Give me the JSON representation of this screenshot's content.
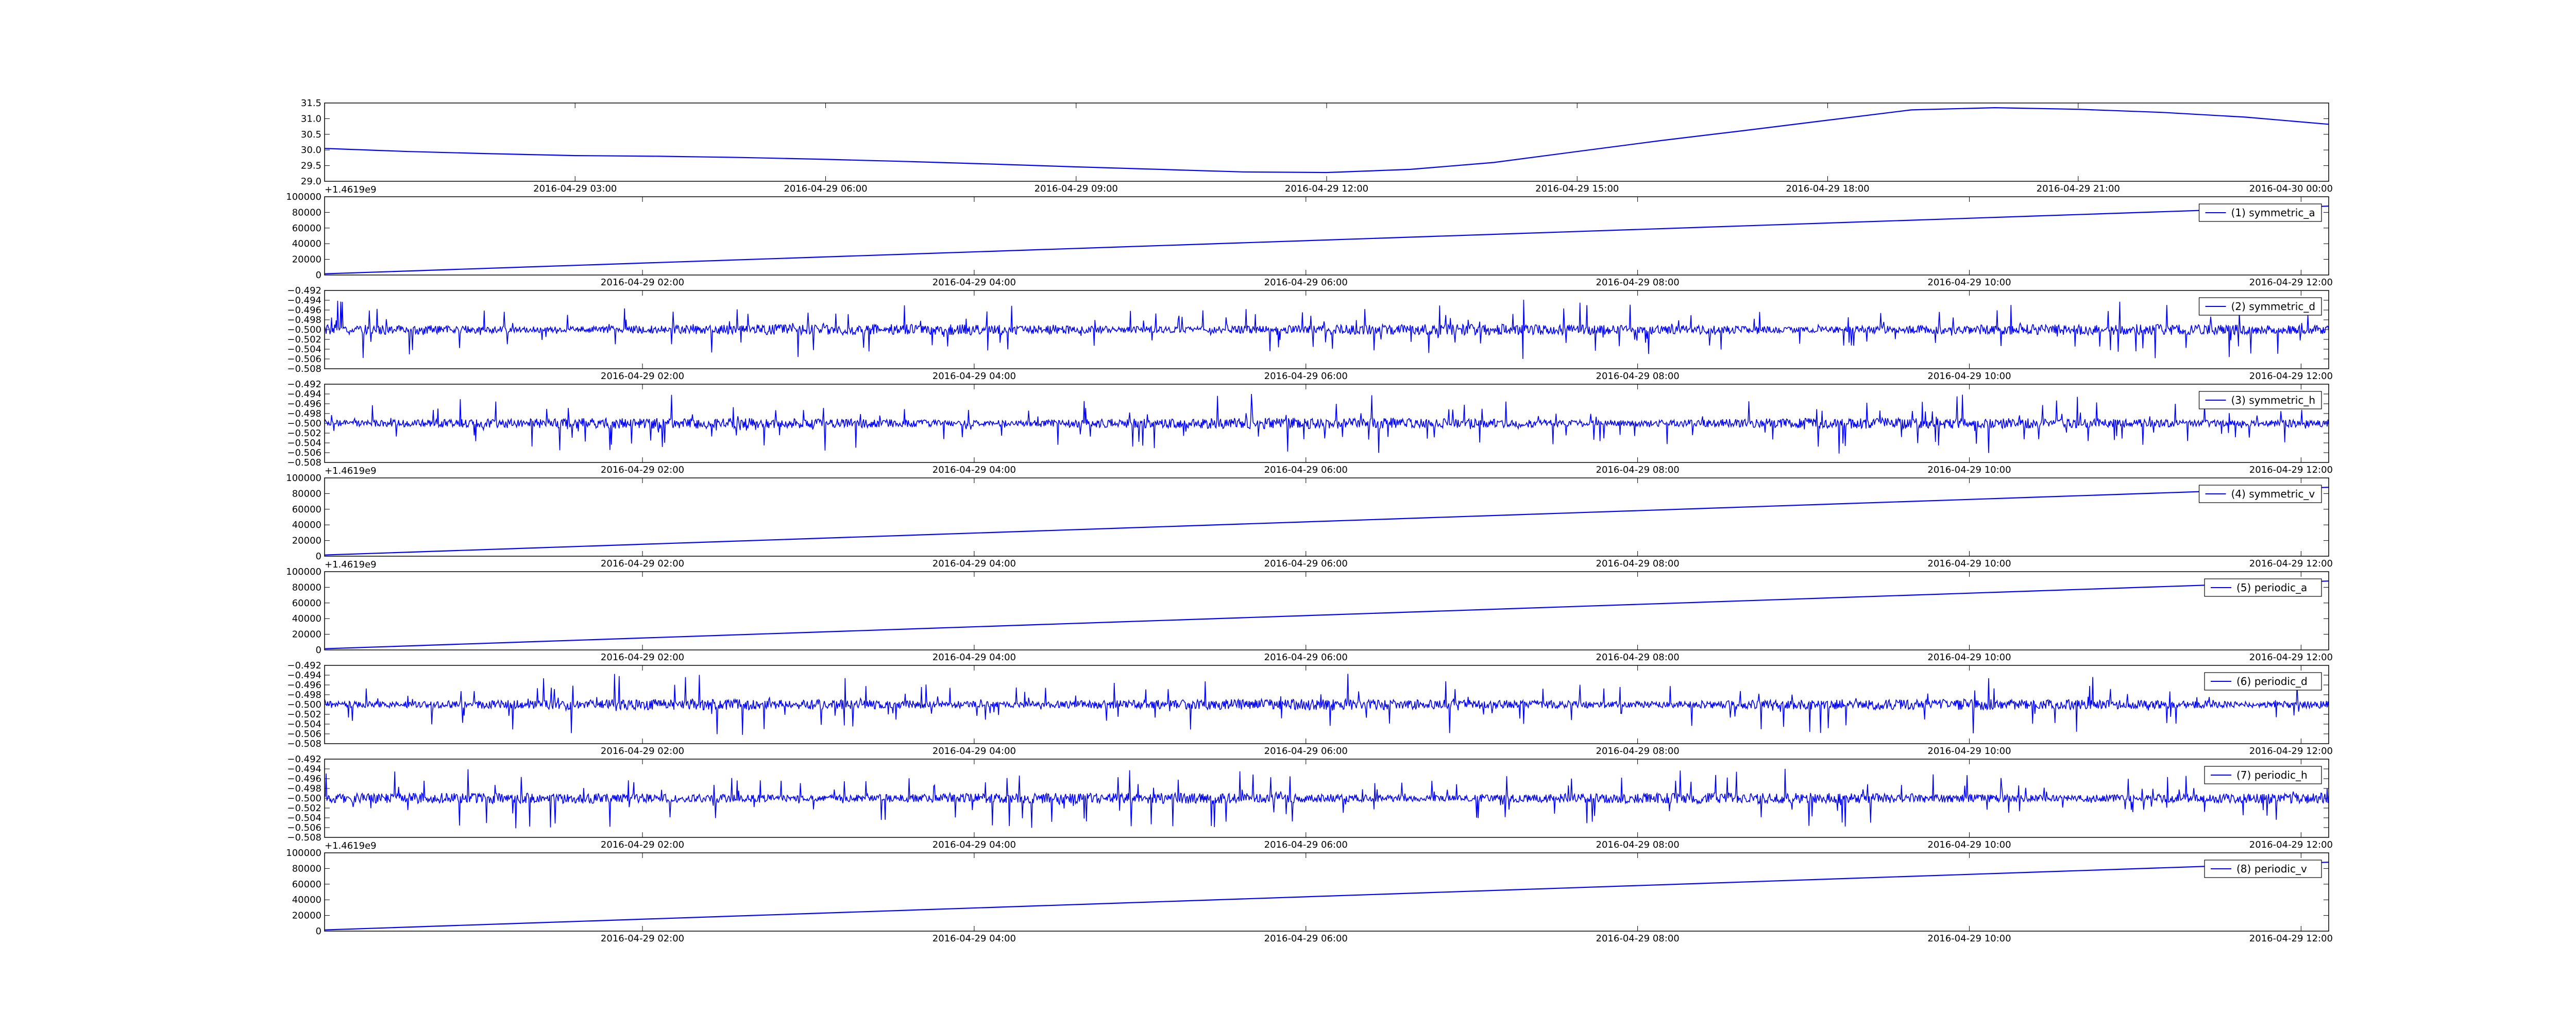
{
  "figure": {
    "background": "#ffffff",
    "line_color": "#0000ff",
    "axis_color": "#000000"
  },
  "chart_data": [
    {
      "id": "top",
      "type": "line",
      "x_type": "date",
      "xlim": [
        "2016-04-29 00:00",
        "2016-04-30 00:00"
      ],
      "ylim": [
        29.0,
        31.5
      ],
      "x_tick_labels": [
        "2016-04-29 03:00",
        "2016-04-29 06:00",
        "2016-04-29 09:00",
        "2016-04-29 12:00",
        "2016-04-29 15:00",
        "2016-04-29 18:00",
        "2016-04-29 21:00",
        "2016-04-30 00:00"
      ],
      "y_tick_labels": [
        "29.0",
        "29.5",
        "30.0",
        "30.5",
        "31.0",
        "31.5"
      ],
      "offset_label": "+1.4619e9",
      "legend": null,
      "series": [
        {
          "x": [
            "2016-04-29 00:00",
            "2016-04-29 01:00",
            "2016-04-29 02:00",
            "2016-04-29 03:00",
            "2016-04-29 04:00",
            "2016-04-29 05:00",
            "2016-04-29 06:00",
            "2016-04-29 07:00",
            "2016-04-29 08:00",
            "2016-04-29 09:00",
            "2016-04-29 10:00",
            "2016-04-29 11:00",
            "2016-04-29 12:00",
            "2016-04-29 13:00",
            "2016-04-29 14:00",
            "2016-04-29 15:00",
            "2016-04-29 16:00",
            "2016-04-29 17:00",
            "2016-04-29 18:00",
            "2016-04-29 19:00",
            "2016-04-29 20:00",
            "2016-04-29 21:00",
            "2016-04-29 22:00",
            "2016-04-29 23:00",
            "2016-04-30 00:00"
          ],
          "values": [
            30.05,
            29.95,
            29.88,
            29.82,
            29.8,
            29.76,
            29.7,
            29.63,
            29.55,
            29.46,
            29.38,
            29.3,
            29.28,
            29.38,
            29.6,
            29.95,
            30.3,
            30.62,
            30.95,
            31.28,
            31.35,
            31.3,
            31.2,
            31.05,
            30.82
          ]
        }
      ]
    },
    {
      "id": "p1",
      "type": "line",
      "x_type": "date",
      "xlim": [
        "2016-04-29 00:05",
        "2016-04-29 12:10"
      ],
      "ylim": [
        0,
        100000
      ],
      "x_tick_labels": [
        "2016-04-29 02:00",
        "2016-04-29 04:00",
        "2016-04-29 06:00",
        "2016-04-29 08:00",
        "2016-04-29 10:00",
        "2016-04-29 12:00"
      ],
      "y_tick_labels": [
        "0",
        "20000",
        "40000",
        "60000",
        "80000",
        "100000"
      ],
      "offset_label": "",
      "legend": "(1) symmetric_a",
      "series": [
        {
          "x": [
            "2016-04-29 00:05",
            "2016-04-29 12:10"
          ],
          "values": [
            1500,
            88000
          ]
        }
      ]
    },
    {
      "id": "p2",
      "type": "line",
      "x_type": "date",
      "noise": true,
      "xlim": [
        "2016-04-29 00:05",
        "2016-04-29 12:10"
      ],
      "ylim": [
        -0.508,
        -0.492
      ],
      "x_tick_labels": [
        "2016-04-29 02:00",
        "2016-04-29 04:00",
        "2016-04-29 06:00",
        "2016-04-29 08:00",
        "2016-04-29 10:00",
        "2016-04-29 12:00"
      ],
      "y_tick_labels": [
        "−0.508",
        "−0.506",
        "−0.504",
        "−0.502",
        "−0.500",
        "−0.498",
        "−0.496",
        "−0.494",
        "−0.492"
      ],
      "offset_label": "",
      "legend": "(2) symmetric_d",
      "series": [
        {
          "x": [
            "2016-04-29 00:05",
            "2016-04-29 12:10"
          ],
          "values": [
            -0.5,
            -0.5
          ],
          "range": [
            -0.5065,
            -0.4935
          ]
        }
      ]
    },
    {
      "id": "p3",
      "type": "line",
      "x_type": "date",
      "noise": true,
      "xlim": [
        "2016-04-29 00:05",
        "2016-04-29 12:10"
      ],
      "ylim": [
        -0.508,
        -0.492
      ],
      "x_tick_labels": [
        "2016-04-29 02:00",
        "2016-04-29 04:00",
        "2016-04-29 06:00",
        "2016-04-29 08:00",
        "2016-04-29 10:00",
        "2016-04-29 12:00"
      ],
      "y_tick_labels": [
        "−0.508",
        "−0.506",
        "−0.504",
        "−0.502",
        "−0.500",
        "−0.498",
        "−0.496",
        "−0.494",
        "−0.492"
      ],
      "offset_label": "+1.4619e9",
      "legend": "(3) symmetric_h",
      "series": [
        {
          "x": [
            "2016-04-29 00:05",
            "2016-04-29 12:10"
          ],
          "values": [
            -0.5,
            -0.5
          ],
          "range": [
            -0.5075,
            -0.4935
          ]
        }
      ]
    },
    {
      "id": "p4",
      "type": "line",
      "x_type": "date",
      "xlim": [
        "2016-04-29 00:05",
        "2016-04-29 12:10"
      ],
      "ylim": [
        0,
        100000
      ],
      "x_tick_labels": [
        "2016-04-29 02:00",
        "2016-04-29 04:00",
        "2016-04-29 06:00",
        "2016-04-29 08:00",
        "2016-04-29 10:00",
        "2016-04-29 12:00"
      ],
      "y_tick_labels": [
        "0",
        "20000",
        "40000",
        "60000",
        "80000",
        "100000"
      ],
      "offset_label": "+1.4619e9",
      "legend": "(4) symmetric_v",
      "series": [
        {
          "x": [
            "2016-04-29 00:05",
            "2016-04-29 12:10"
          ],
          "values": [
            1500,
            88000
          ]
        }
      ]
    },
    {
      "id": "p5",
      "type": "line",
      "x_type": "date",
      "xlim": [
        "2016-04-29 00:05",
        "2016-04-29 12:10"
      ],
      "ylim": [
        0,
        100000
      ],
      "x_tick_labels": [
        "2016-04-29 02:00",
        "2016-04-29 04:00",
        "2016-04-29 06:00",
        "2016-04-29 08:00",
        "2016-04-29 10:00",
        "2016-04-29 12:00"
      ],
      "y_tick_labels": [
        "0",
        "20000",
        "40000",
        "60000",
        "80000",
        "100000"
      ],
      "offset_label": "",
      "legend": "(5) periodic_a",
      "series": [
        {
          "x": [
            "2016-04-29 00:05",
            "2016-04-29 12:10"
          ],
          "values": [
            1500,
            88000
          ]
        }
      ]
    },
    {
      "id": "p6",
      "type": "line",
      "x_type": "date",
      "noise": true,
      "xlim": [
        "2016-04-29 00:05",
        "2016-04-29 12:10"
      ],
      "ylim": [
        -0.508,
        -0.492
      ],
      "x_tick_labels": [
        "2016-04-29 02:00",
        "2016-04-29 04:00",
        "2016-04-29 06:00",
        "2016-04-29 08:00",
        "2016-04-29 10:00",
        "2016-04-29 12:00"
      ],
      "y_tick_labels": [
        "−0.508",
        "−0.506",
        "−0.504",
        "−0.502",
        "−0.500",
        "−0.498",
        "−0.496",
        "−0.494",
        "−0.492"
      ],
      "offset_label": "",
      "legend": "(6) periodic_d",
      "series": [
        {
          "x": [
            "2016-04-29 00:05",
            "2016-04-29 12:10"
          ],
          "values": [
            -0.5,
            -0.5
          ],
          "range": [
            -0.5065,
            -0.4935
          ]
        }
      ]
    },
    {
      "id": "p7",
      "type": "line",
      "x_type": "date",
      "noise": true,
      "xlim": [
        "2016-04-29 00:05",
        "2016-04-29 12:10"
      ],
      "ylim": [
        -0.508,
        -0.492
      ],
      "x_tick_labels": [
        "2016-04-29 02:00",
        "2016-04-29 04:00",
        "2016-04-29 06:00",
        "2016-04-29 08:00",
        "2016-04-29 10:00",
        "2016-04-29 12:00"
      ],
      "y_tick_labels": [
        "−0.508",
        "−0.506",
        "−0.504",
        "−0.502",
        "−0.500",
        "−0.498",
        "−0.496",
        "−0.494",
        "−0.492"
      ],
      "offset_label": "+1.4619e9",
      "legend": "(7) periodic_h",
      "series": [
        {
          "x": [
            "2016-04-29 00:05",
            "2016-04-29 12:10"
          ],
          "values": [
            -0.5,
            -0.5
          ],
          "range": [
            -0.5075,
            -0.4935
          ]
        }
      ]
    },
    {
      "id": "p8",
      "type": "line",
      "x_type": "date",
      "xlim": [
        "2016-04-29 00:05",
        "2016-04-29 12:10"
      ],
      "ylim": [
        0,
        100000
      ],
      "x_tick_labels": [
        "2016-04-29 02:00",
        "2016-04-29 04:00",
        "2016-04-29 06:00",
        "2016-04-29 08:00",
        "2016-04-29 10:00",
        "2016-04-29 12:00"
      ],
      "y_tick_labels": [
        "0",
        "20000",
        "40000",
        "60000",
        "80000",
        "100000"
      ],
      "offset_label": "",
      "legend": "(8) periodic_v",
      "series": [
        {
          "x": [
            "2016-04-29 00:05",
            "2016-04-29 12:10"
          ],
          "values": [
            1500,
            88000
          ]
        }
      ]
    }
  ]
}
